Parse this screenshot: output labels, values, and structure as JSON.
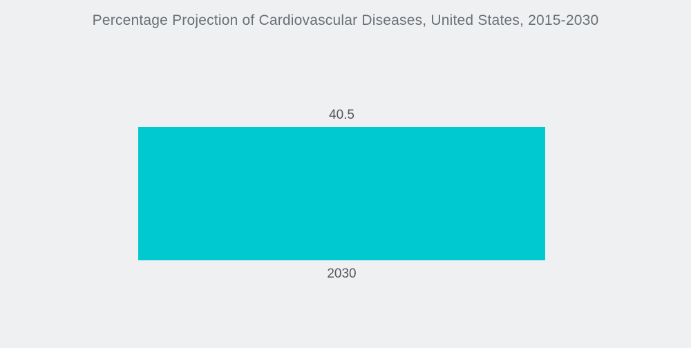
{
  "chart_data": {
    "type": "bar",
    "title": "Percentage Projection of Cardiovascular Diseases, United States, 2015-2030",
    "categories": [
      "2030"
    ],
    "values": [
      40.5
    ],
    "value_labels": [
      "40.5"
    ],
    "orientation": "vertical",
    "xlabel": "",
    "ylabel": "",
    "ylim": [
      0,
      45
    ],
    "grid": false,
    "legend": false,
    "axes_visible": false,
    "colors": {
      "bar": "#00C9CF",
      "background": "#eef0f2",
      "title_text": "#6a7075",
      "label_text": "#53575a"
    }
  }
}
